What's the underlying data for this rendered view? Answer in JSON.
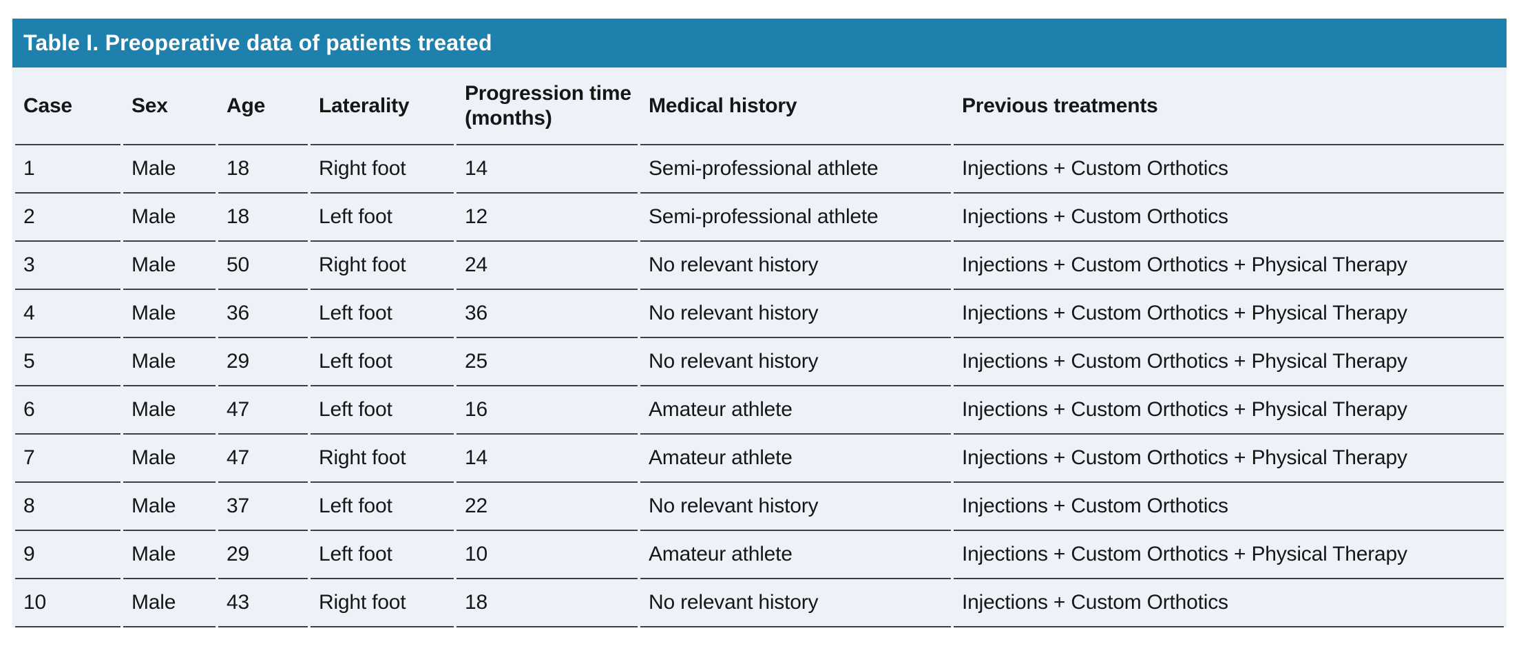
{
  "table": {
    "title": "Table I. Preoperative data of patients treated",
    "columns": [
      "Case",
      "Sex",
      "Age",
      "Laterality",
      "Progression time (months)",
      "Medical history",
      "Previous treatments"
    ],
    "rows": [
      [
        "1",
        "Male",
        "18",
        "Right foot",
        "14",
        "Semi-professional athlete",
        "Injections + Custom Orthotics"
      ],
      [
        "2",
        "Male",
        "18",
        "Left foot",
        "12",
        "Semi-professional athlete",
        "Injections + Custom Orthotics"
      ],
      [
        "3",
        "Male",
        "50",
        "Right foot",
        "24",
        "No relevant history",
        "Injections + Custom Orthotics + Physical Therapy"
      ],
      [
        "4",
        "Male",
        "36",
        "Left foot",
        "36",
        "No relevant history",
        "Injections + Custom Orthotics + Physical Therapy"
      ],
      [
        "5",
        "Male",
        "29",
        "Left foot",
        "25",
        "No relevant history",
        "Injections + Custom Orthotics + Physical Therapy"
      ],
      [
        "6",
        "Male",
        "47",
        "Left foot",
        "16",
        "Amateur athlete",
        "Injections + Custom Orthotics + Physical Therapy"
      ],
      [
        "7",
        "Male",
        "47",
        "Right foot",
        "14",
        "Amateur athlete",
        "Injections + Custom Orthotics + Physical Therapy"
      ],
      [
        "8",
        "Male",
        "37",
        "Left foot",
        "22",
        "No relevant history",
        "Injections + Custom Orthotics"
      ],
      [
        "9",
        "Male",
        "29",
        "Left foot",
        "10",
        "Amateur athlete",
        "Injections + Custom Orthotics + Physical Therapy"
      ],
      [
        "10",
        "Male",
        "43",
        "Right foot",
        "18",
        "No relevant history",
        "Injections + Custom Orthotics"
      ]
    ],
    "colors": {
      "header_bar": "#1E80AD",
      "title_text": "#FFFFFF",
      "row_bg": "#EDF1F8",
      "divider": "#3E3E3E",
      "body_text": "#161616"
    }
  }
}
